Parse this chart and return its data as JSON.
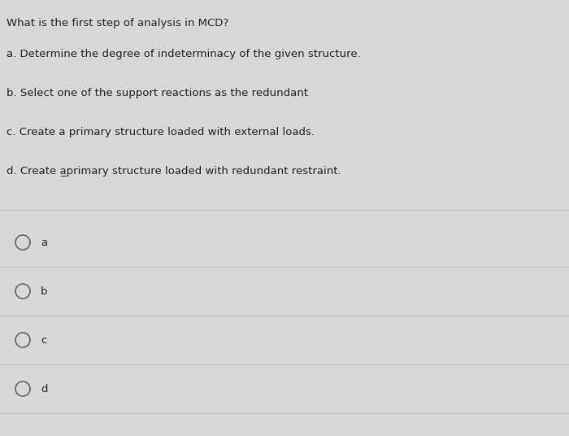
{
  "background_color": "#d8d8d8",
  "question": "What is the first step of analysis in MCD?",
  "options": [
    "a. Determine the degree of indeterminacy of the given structure.",
    "b. Select one of the support reactions as the redundant",
    "c. Create a primary structure loaded with external loads.",
    "d. Create a̲primary structure loaded with redundant restraint."
  ],
  "choices": [
    "a",
    "b",
    "c",
    "d"
  ],
  "question_fontsize": 9.5,
  "option_fontsize": 9.5,
  "choice_fontsize": 9.5,
  "text_color": "#222222",
  "circle_color": "#666666",
  "divider_color": "#c0c0c0",
  "figsize": [
    7.0,
    5.36
  ],
  "dpi": 100
}
